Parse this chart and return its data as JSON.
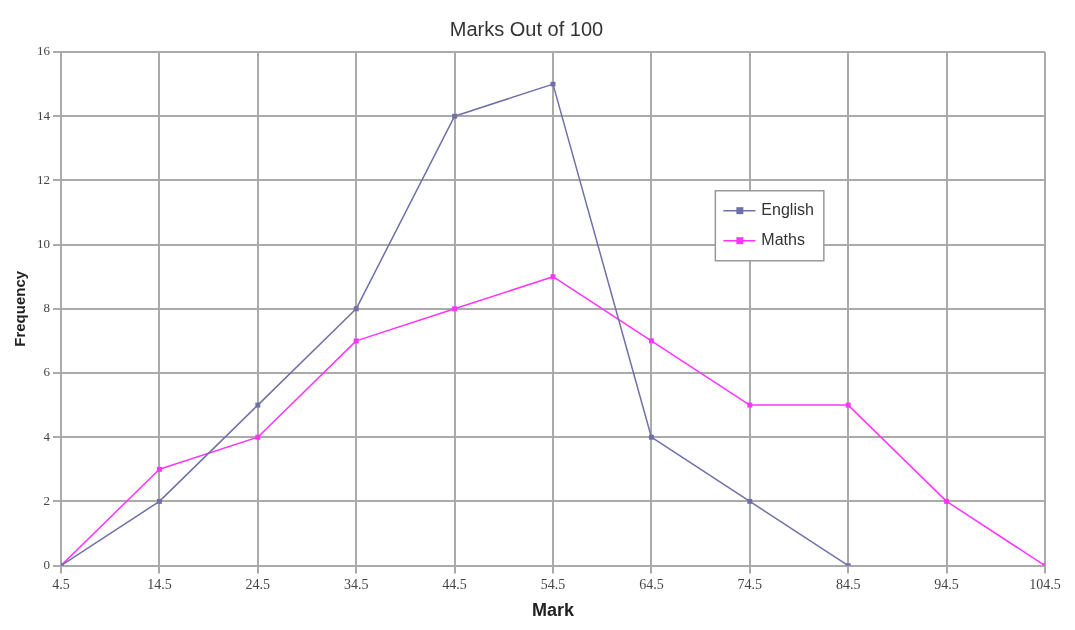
{
  "chart_data": {
    "type": "line",
    "title": "Marks Out of 100",
    "xlabel": "Mark",
    "ylabel": "Frequency",
    "xlim": [
      4.5,
      104.5
    ],
    "xticks": [
      4.5,
      14.5,
      24.5,
      34.5,
      44.5,
      54.5,
      64.5,
      74.5,
      84.5,
      94.5,
      104.5
    ],
    "ylim": [
      0,
      16
    ],
    "yticks": [
      0,
      2,
      4,
      6,
      8,
      10,
      12,
      14,
      16
    ],
    "series": [
      {
        "name": "English",
        "color": "#7070a8",
        "x": [
          4.5,
          14.5,
          24.5,
          34.5,
          44.5,
          54.5,
          64.5,
          74.5,
          84.5
        ],
        "values": [
          0,
          2,
          5,
          8,
          14,
          15,
          4,
          2,
          0
        ]
      },
      {
        "name": "Maths",
        "color": "#ff33ff",
        "x": [
          4.5,
          14.5,
          24.5,
          34.5,
          44.5,
          54.5,
          64.5,
          74.5,
          84.5,
          94.5,
          104.5
        ],
        "values": [
          0,
          3,
          4,
          7,
          8,
          9,
          7,
          5,
          5,
          2,
          0
        ]
      }
    ],
    "grid": true,
    "legend": "right",
    "marker": "square",
    "line_style": "solid"
  }
}
